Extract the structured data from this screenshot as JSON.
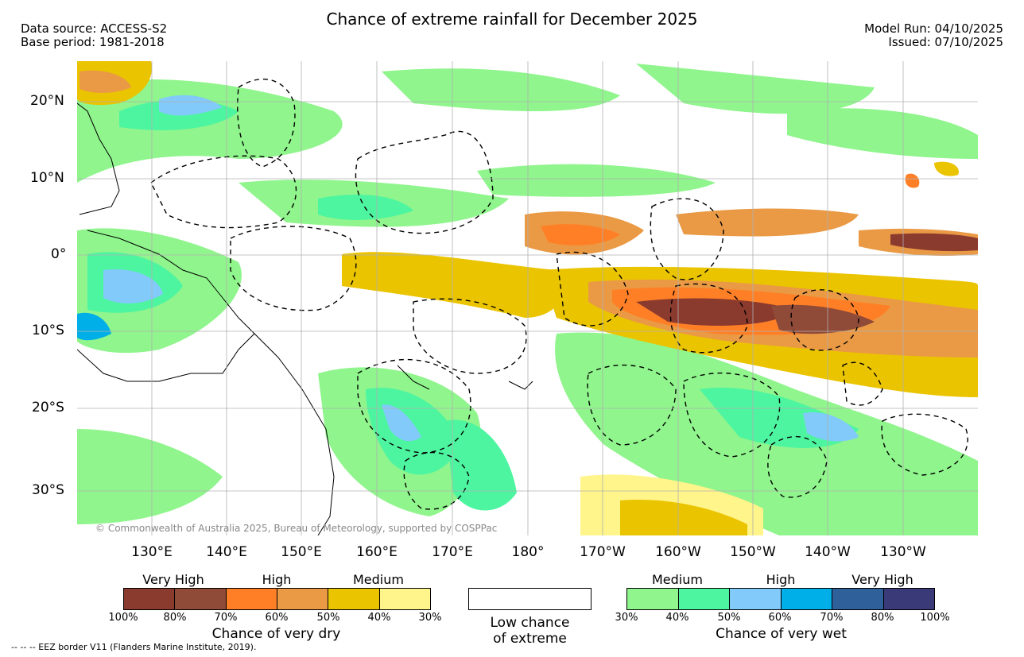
{
  "title": "Chance of extreme rainfall for December 2025",
  "header_left": {
    "line1": "Data source: ACCESS-S2",
    "line2": "Base period: 1981-2018"
  },
  "header_right": {
    "line1": "Model Run: 04/10/2025",
    "line2": "Issued: 07/10/2025"
  },
  "lat_labels": [
    "20°N",
    "10°N",
    "0°",
    "10°S",
    "20°S",
    "30°S"
  ],
  "lon_labels": [
    "130°E",
    "140°E",
    "150°E",
    "160°E",
    "170°E",
    "180°",
    "170°W",
    "160°W",
    "150°W",
    "140°W",
    "130°W"
  ],
  "copyright": "© Commonwealth of Australia 2025, Bureau of Meteorology, supported by COSPPac",
  "eez_note": "-- -- -- EEZ border V11 (Flanders Marine Institute, 2019).",
  "dry_legend": {
    "caption": "Chance of very dry",
    "categories": [
      "Very High",
      "High",
      "Medium"
    ],
    "ticks": [
      "100%",
      "80%",
      "70%",
      "60%",
      "50%",
      "40%",
      "30%"
    ],
    "colors": [
      "#8b3a2e",
      "#8f4a38",
      "#ff7f26",
      "#ea9a45",
      "#ebc400",
      "#fff58a"
    ]
  },
  "low_legend": {
    "line1": "Low chance",
    "line2": "of extreme"
  },
  "wet_legend": {
    "caption": "Chance of very wet",
    "categories": [
      "Medium",
      "High",
      "Very High"
    ],
    "ticks": [
      "30%",
      "40%",
      "50%",
      "60%",
      "70%",
      "80%",
      "100%"
    ],
    "colors": [
      "#8ff58c",
      "#4df5a0",
      "#82cafa",
      "#00aee8",
      "#30609a",
      "#3a3a78"
    ]
  }
}
